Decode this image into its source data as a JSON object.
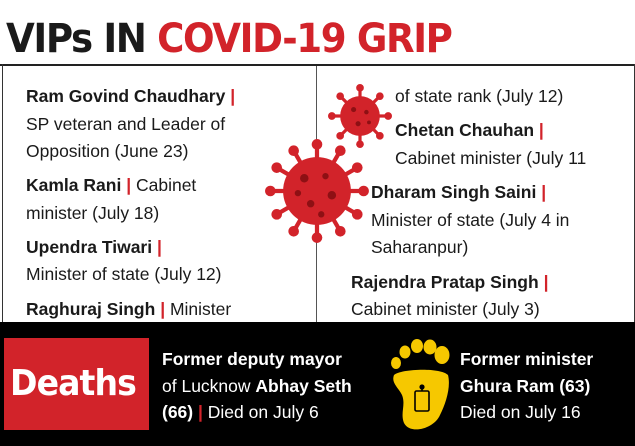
{
  "title": {
    "prefix": "VIPs IN",
    "highlight": "COVID-19 GRIP"
  },
  "left_column": {
    "entries": [
      {
        "name": "Ram Govind Chaudhary",
        "separator": "|",
        "line1": "SP veteran and Leader of",
        "line2": "Opposition (June 23)"
      },
      {
        "name": "Kamla Rani",
        "separator": "|",
        "inline_text": "Cabinet",
        "line2": "minister (July 18)"
      },
      {
        "name": "Upendra Tiwari",
        "separator": "|",
        "line1": "Minister of state (July 12)"
      },
      {
        "name": "Raghuraj Singh",
        "separator": "|",
        "inline_text": "Minister"
      }
    ]
  },
  "right_column": {
    "continuation": "of state rank (July 12)",
    "entries": [
      {
        "name": "Chetan Chauhan",
        "separator": "|",
        "line1": "Cabinet minister (July 11"
      },
      {
        "name": "Dharam Singh Saini",
        "separator": "|",
        "line1": "Minister of state (July 4 in",
        "line2": "Saharanpur)"
      },
      {
        "name": "Rajendra Pratap Singh",
        "separator": "|",
        "line1": "Cabinet minister (July 3)"
      }
    ]
  },
  "deaths": {
    "label": "Deaths",
    "left": {
      "line1": "Former deputy mayor",
      "line2_prefix": "of Lucknow",
      "name": "Abhay Seth",
      "age": "(66)",
      "separator": "|",
      "died": "Died on July 6"
    },
    "right": {
      "line1": "Former minister",
      "name_age": "Ghura Ram (63)",
      "died": "Died on July 16"
    }
  },
  "icons": {
    "virus_large": "coronavirus-icon",
    "virus_small": "coronavirus-icon",
    "footprint": "footprint-tag-icon"
  },
  "colors": {
    "accent": "#d2232a",
    "text": "#1a1a1a",
    "panel": "#000000",
    "footprint": "#f6c800"
  }
}
